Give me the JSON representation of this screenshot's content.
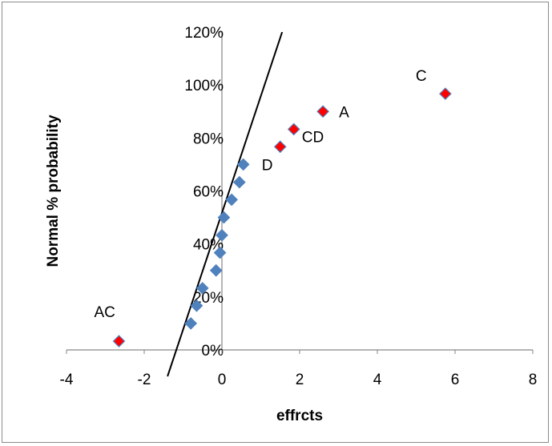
{
  "chart_data": {
    "type": "scatter",
    "title": "",
    "xlabel": "effrcts",
    "ylabel": "Normal % probability",
    "xlim": [
      -4,
      8
    ],
    "ylim": [
      0,
      1.2
    ],
    "x_ticks": [
      -4,
      -2,
      0,
      2,
      4,
      6,
      8
    ],
    "x_tick_labels": [
      "-4",
      "-2",
      "0",
      "2",
      "4",
      "6",
      "8"
    ],
    "y_ticks": [
      0,
      0.2,
      0.4,
      0.6,
      0.8,
      1.0,
      1.2
    ],
    "y_tick_labels": [
      "0%",
      "20%",
      "40%",
      "60%",
      "80%",
      "100%",
      "120%"
    ],
    "grid": false,
    "legend": "none",
    "colors": {
      "insignificant_fill": "#4f81bd",
      "significant_fill": "#ff0000",
      "marker_edge": "#4f81bd",
      "reference_line": "#000000",
      "axis": "#868686"
    },
    "series": [
      {
        "marker": "diamond",
        "points": [
          {
            "x": -0.8,
            "y": 0.1
          },
          {
            "x": -0.65,
            "y": 0.167
          },
          {
            "x": -0.5,
            "y": 0.233
          },
          {
            "x": -0.15,
            "y": 0.3
          },
          {
            "x": -0.05,
            "y": 0.367
          },
          {
            "x": 0.0,
            "y": 0.433
          },
          {
            "x": 0.05,
            "y": 0.5
          },
          {
            "x": 0.25,
            "y": 0.567
          },
          {
            "x": 0.45,
            "y": 0.633
          },
          {
            "x": 0.55,
            "y": 0.7
          }
        ]
      },
      {
        "marker": "diamond",
        "points": [
          {
            "label": "AC",
            "x": -2.65,
            "y": 0.033
          },
          {
            "label": "D",
            "x": 1.5,
            "y": 0.767
          },
          {
            "label": "CD",
            "x": 1.85,
            "y": 0.833
          },
          {
            "label": "A",
            "x": 2.6,
            "y": 0.9
          },
          {
            "label": "C",
            "x": 5.75,
            "y": 0.967
          }
        ]
      }
    ],
    "reference_line": {
      "x1": -1.4,
      "y1": -0.1,
      "x2": 1.55,
      "y2": 1.2
    }
  }
}
